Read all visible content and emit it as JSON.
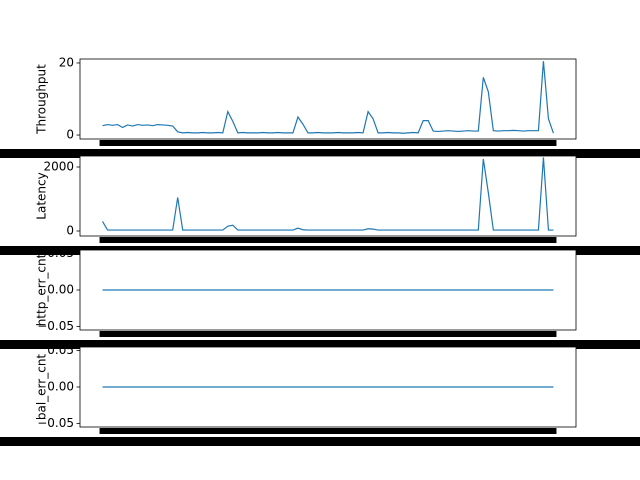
{
  "chart_data": [
    {
      "type": "line",
      "ylabel": "Throughput",
      "ylim": [
        -1.1,
        21.1
      ],
      "yticks": [
        0,
        20
      ],
      "color": "#1f77b4",
      "values": [
        2.6,
        2.9,
        2.7,
        2.9,
        2.1,
        2.8,
        2.5,
        2.9,
        2.7,
        2.8,
        2.6,
        2.9,
        2.8,
        2.7,
        2.5,
        0.9,
        0.6,
        0.7,
        0.6,
        0.6,
        0.7,
        0.6,
        0.6,
        0.7,
        0.6,
        6.5,
        3.8,
        0.6,
        0.7,
        0.6,
        0.6,
        0.6,
        0.7,
        0.6,
        0.6,
        0.7,
        0.6,
        0.6,
        0.6,
        5.0,
        3.0,
        0.6,
        0.6,
        0.7,
        0.6,
        0.6,
        0.6,
        0.7,
        0.6,
        0.6,
        0.6,
        0.7,
        0.6,
        6.5,
        4.5,
        0.6,
        0.6,
        0.7,
        0.6,
        0.6,
        0.5,
        0.6,
        0.7,
        0.6,
        4.0,
        4.0,
        1.1,
        1.0,
        1.1,
        1.2,
        1.1,
        1.0,
        1.1,
        1.2,
        1.1,
        1.1,
        16,
        12,
        1.2,
        1.1,
        1.2,
        1.2,
        1.3,
        1.2,
        1.1,
        1.2,
        1.2,
        1.2,
        20.5,
        4.5,
        0.5
      ]
    },
    {
      "type": "line",
      "ylabel": "Latency",
      "ylim": [
        -156,
        2344
      ],
      "yticks": [
        0,
        2000
      ],
      "color": "#1f77b4",
      "values": [
        300,
        30,
        30,
        30,
        30,
        30,
        30,
        30,
        30,
        30,
        30,
        30,
        30,
        30,
        30,
        1050,
        30,
        30,
        30,
        30,
        30,
        30,
        30,
        30,
        30,
        150,
        180,
        30,
        30,
        30,
        30,
        30,
        30,
        30,
        30,
        30,
        30,
        30,
        30,
        90,
        40,
        30,
        30,
        30,
        30,
        30,
        30,
        30,
        30,
        30,
        30,
        30,
        30,
        70,
        60,
        30,
        30,
        30,
        30,
        30,
        30,
        30,
        30,
        30,
        30,
        30,
        30,
        30,
        30,
        30,
        30,
        30,
        30,
        30,
        30,
        30,
        2250,
        1200,
        30,
        30,
        30,
        30,
        30,
        30,
        30,
        30,
        30,
        30,
        2300,
        30,
        30
      ]
    },
    {
      "type": "line",
      "ylabel": "http_err_cnt",
      "ylim": [
        -0.055,
        0.055
      ],
      "yticks": [
        {
          "value": -0.05,
          "label": "−0.05"
        },
        {
          "value": 0,
          "label": "0.00"
        },
        {
          "value": 0.05,
          "label": "0.05"
        }
      ],
      "color": "#1f77b4",
      "values": [
        0,
        0,
        0,
        0,
        0,
        0,
        0,
        0,
        0,
        0,
        0,
        0,
        0,
        0,
        0,
        0,
        0,
        0,
        0,
        0,
        0,
        0,
        0,
        0,
        0,
        0,
        0,
        0,
        0,
        0,
        0,
        0,
        0,
        0,
        0,
        0,
        0,
        0,
        0,
        0,
        0,
        0,
        0,
        0,
        0,
        0,
        0,
        0,
        0,
        0,
        0,
        0,
        0,
        0,
        0,
        0,
        0,
        0,
        0,
        0,
        0,
        0,
        0,
        0,
        0,
        0,
        0,
        0,
        0,
        0,
        0,
        0,
        0,
        0,
        0,
        0,
        0,
        0,
        0,
        0,
        0,
        0,
        0,
        0,
        0,
        0,
        0,
        0,
        0,
        0,
        0
      ]
    },
    {
      "type": "line",
      "ylabel": "bal_err_cnt",
      "ylim": [
        -0.055,
        0.055
      ],
      "yticks": [
        {
          "value": -0.05,
          "label": "−0.05"
        },
        {
          "value": 0,
          "label": "0.00"
        },
        {
          "value": 0.05,
          "label": "0.05"
        }
      ],
      "color": "#1f77b4",
      "values": [
        0,
        0,
        0,
        0,
        0,
        0,
        0,
        0,
        0,
        0,
        0,
        0,
        0,
        0,
        0,
        0,
        0,
        0,
        0,
        0,
        0,
        0,
        0,
        0,
        0,
        0,
        0,
        0,
        0,
        0,
        0,
        0,
        0,
        0,
        0,
        0,
        0,
        0,
        0,
        0,
        0,
        0,
        0,
        0,
        0,
        0,
        0,
        0,
        0,
        0,
        0,
        0,
        0,
        0,
        0,
        0,
        0,
        0,
        0,
        0,
        0,
        0,
        0,
        0,
        0,
        0,
        0,
        0,
        0,
        0,
        0,
        0,
        0,
        0,
        0,
        0,
        0,
        0,
        0,
        0,
        0,
        0,
        0,
        0,
        0,
        0,
        0,
        0,
        0,
        0,
        0
      ]
    }
  ]
}
